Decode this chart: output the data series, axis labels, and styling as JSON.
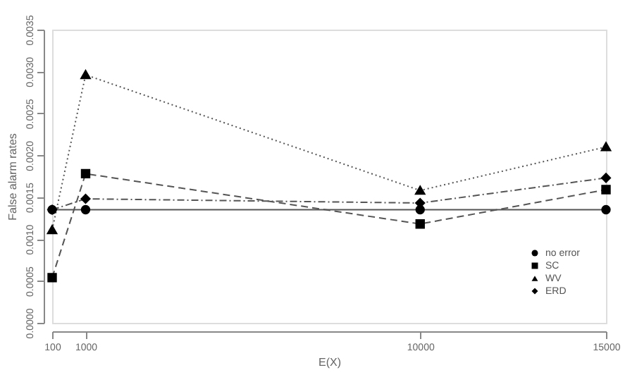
{
  "chart_data": {
    "type": "line",
    "xlabel": "E(X)",
    "ylabel": "False alarm rates",
    "x": [
      100,
      1000,
      10000,
      15000
    ],
    "series": [
      {
        "name": "no error",
        "color": "#555555",
        "values": [
          0.00135,
          0.00135,
          0.00135,
          0.00135
        ],
        "marker": "circle",
        "line_style": "solid"
      },
      {
        "name": "SC",
        "color": "#555555",
        "values": [
          0.00054,
          0.00178,
          0.00118,
          0.00159
        ],
        "marker": "square",
        "line_style": "dashed"
      },
      {
        "name": "WV",
        "color": "#555555",
        "values": [
          0.00111,
          0.00296,
          0.00158,
          0.0021
        ],
        "marker": "triangle",
        "line_style": "dotted"
      },
      {
        "name": "ERD",
        "color": "#555555",
        "values": [
          0.00135,
          0.00148,
          0.00143,
          0.00173
        ],
        "marker": "diamond",
        "line_style": "dashdot"
      }
    ],
    "xlim": [
      100,
      15000
    ],
    "xticks": [
      100,
      1000,
      10000,
      15000
    ],
    "ylim": [
      0,
      0.0035
    ],
    "yticks": [
      {
        "value": 0,
        "label": "0.0000"
      },
      {
        "value": 0.0005,
        "label": "0.0005"
      },
      {
        "value": 0.001,
        "label": "0.0010"
      },
      {
        "value": 0.0015,
        "label": "0.0015"
      },
      {
        "value": 0.002,
        "label": "0.0020"
      },
      {
        "value": 0.0025,
        "label": "0.0025"
      },
      {
        "value": 0.003,
        "label": "0.0030"
      },
      {
        "value": 0.0035,
        "label": "0.0035"
      }
    ],
    "grid": false,
    "legend": "bottom right"
  }
}
